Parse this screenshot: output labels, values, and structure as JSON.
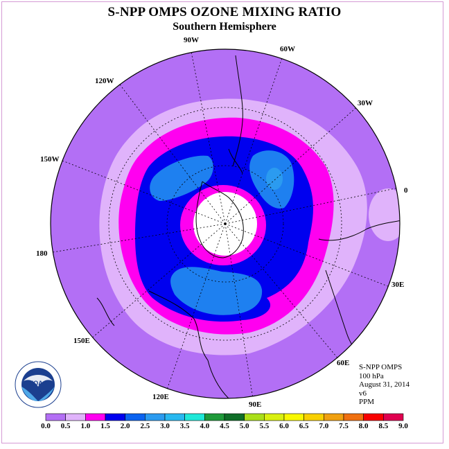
{
  "title": "S-NPP OMPS OZONE MIXING RATIO",
  "subtitle": "Southern Hemisphere",
  "longitude_labels": [
    "90W",
    "60W",
    "30W",
    "0",
    "30E",
    "60E",
    "90E",
    "120E",
    "150E",
    "180",
    "150W",
    "120W"
  ],
  "info": {
    "instrument": "S-NPP OMPS",
    "level": "100 hPa",
    "date": "August 31, 2014",
    "version": "v6",
    "units": "PPM"
  },
  "logo": {
    "text": "NOAA",
    "icon": "noaa-logo"
  },
  "colorbar": {
    "ticks": [
      "0.0",
      "0.5",
      "1.0",
      "1.5",
      "2.0",
      "2.5",
      "3.0",
      "3.5",
      "4.0",
      "4.5",
      "5.0",
      "5.5",
      "6.0",
      "6.5",
      "7.0",
      "7.5",
      "8.0",
      "8.5",
      "9.0"
    ],
    "colors": [
      "#b36ff5",
      "#e0b3fb",
      "#ff00f0",
      "#0000ef",
      "#0b63f0",
      "#2b9bf0",
      "#28b8f0",
      "#1fe8d8",
      "#1f9a3a",
      "#0f6e28",
      "#aadf1a",
      "#d9f010",
      "#f8f800",
      "#f8d000",
      "#f0a010",
      "#f07010",
      "#f80000",
      "#e00050",
      "#8b5a30"
    ]
  },
  "colors": {
    "background_level": "#b36ff5",
    "level_0_5": "#e0b3fb",
    "level_1_0": "#ff00f0",
    "level_1_5": "#0000ef",
    "level_2_0": "#1e80f0",
    "level_2_5": "#2b9bf0",
    "missing": "#ffffff"
  }
}
